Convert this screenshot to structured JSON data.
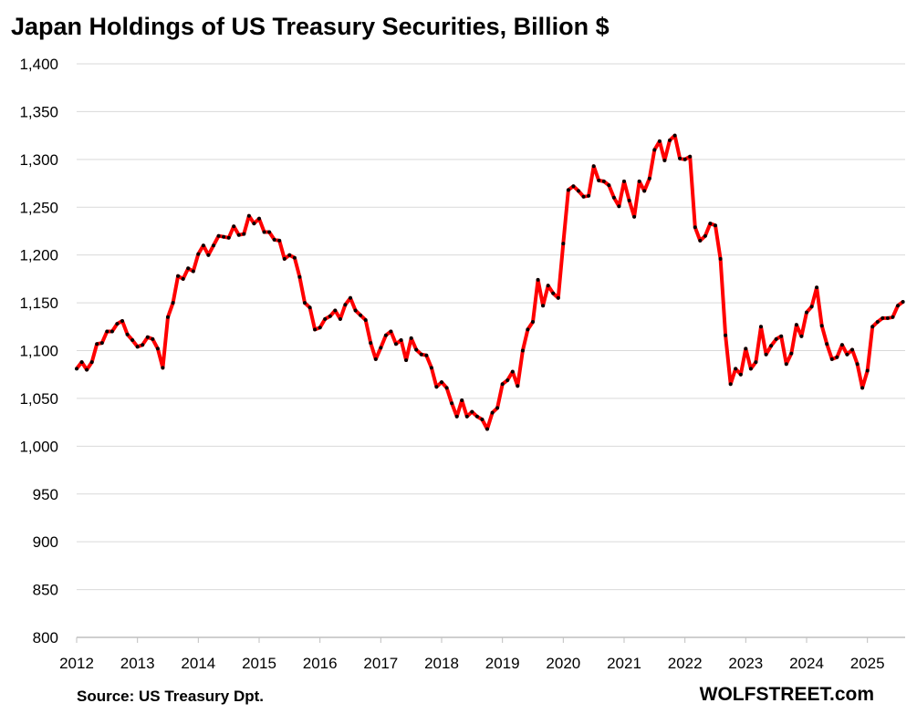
{
  "title": "Japan Holdings of US Treasury Securities, Billion $",
  "source": "Source: US Treasury  Dpt.",
  "brand": "WOLFSTREET.com",
  "colors": {
    "line": "#ff0000",
    "marker": "#000000",
    "grid": "#d9d9d9",
    "axis": "#bfbfbf"
  },
  "chart_data": {
    "type": "line",
    "title": "Japan Holdings of US Treasury Securities, Billion $",
    "xlabel": "",
    "ylabel": "",
    "ylim": [
      800,
      1400
    ],
    "xlim": [
      2012,
      2025.62
    ],
    "yticks": [
      800,
      850,
      900,
      950,
      1000,
      1050,
      1100,
      1150,
      1200,
      1250,
      1300,
      1350,
      1400
    ],
    "ytick_labels": [
      "800",
      "850",
      "900",
      "950",
      "1,000",
      "1,050",
      "1,100",
      "1,150",
      "1,200",
      "1,250",
      "1,300",
      "1,350",
      "1,400"
    ],
    "xticks": [
      2012,
      2013,
      2014,
      2015,
      2016,
      2017,
      2018,
      2019,
      2020,
      2021,
      2022,
      2023,
      2024,
      2025
    ],
    "xtick_labels": [
      "2012",
      "2013",
      "2014",
      "2015",
      "2016",
      "2017",
      "2018",
      "2019",
      "2020",
      "2021",
      "2022",
      "2023",
      "2024",
      "2025"
    ],
    "grid": "horizontal",
    "legend": "none",
    "series": [
      {
        "start": "2012-01",
        "frequency": "monthly",
        "values": [
          1081,
          1088,
          1080,
          1088,
          1107,
          1108,
          1120,
          1120,
          1128,
          1131,
          1117,
          1111,
          1104,
          1106,
          1114,
          1112,
          1102,
          1082,
          1135,
          1150,
          1178,
          1175,
          1186,
          1183,
          1201,
          1210,
          1200,
          1210,
          1220,
          1219,
          1218,
          1230,
          1221,
          1222,
          1241,
          1233,
          1238,
          1224,
          1224,
          1216,
          1215,
          1196,
          1200,
          1197,
          1177,
          1150,
          1145,
          1122,
          1124,
          1133,
          1136,
          1142,
          1133,
          1148,
          1155,
          1142,
          1137,
          1132,
          1108,
          1091,
          1103,
          1116,
          1120,
          1107,
          1111,
          1090,
          1113,
          1101,
          1096,
          1095,
          1082,
          1062,
          1067,
          1061,
          1045,
          1031,
          1048,
          1031,
          1036,
          1031,
          1028,
          1018,
          1035,
          1040,
          1065,
          1069,
          1078,
          1063,
          1100,
          1122,
          1130,
          1174,
          1147,
          1168,
          1160,
          1155,
          1212,
          1268,
          1272,
          1267,
          1261,
          1262,
          1293,
          1278,
          1277,
          1273,
          1260,
          1251,
          1277,
          1257,
          1240,
          1277,
          1267,
          1280,
          1310,
          1319,
          1299,
          1320,
          1325,
          1301,
          1300,
          1303,
          1229,
          1215,
          1220,
          1233,
          1231,
          1196,
          1116,
          1065,
          1081,
          1075,
          1102,
          1081,
          1088,
          1125,
          1096,
          1105,
          1112,
          1115,
          1086,
          1097,
          1127,
          1115,
          1140,
          1146,
          1166,
          1126,
          1107,
          1091,
          1093,
          1106,
          1096,
          1101,
          1086,
          1061,
          1079,
          1125,
          1130,
          1134,
          1134,
          1135,
          1147,
          1151
        ]
      }
    ]
  }
}
